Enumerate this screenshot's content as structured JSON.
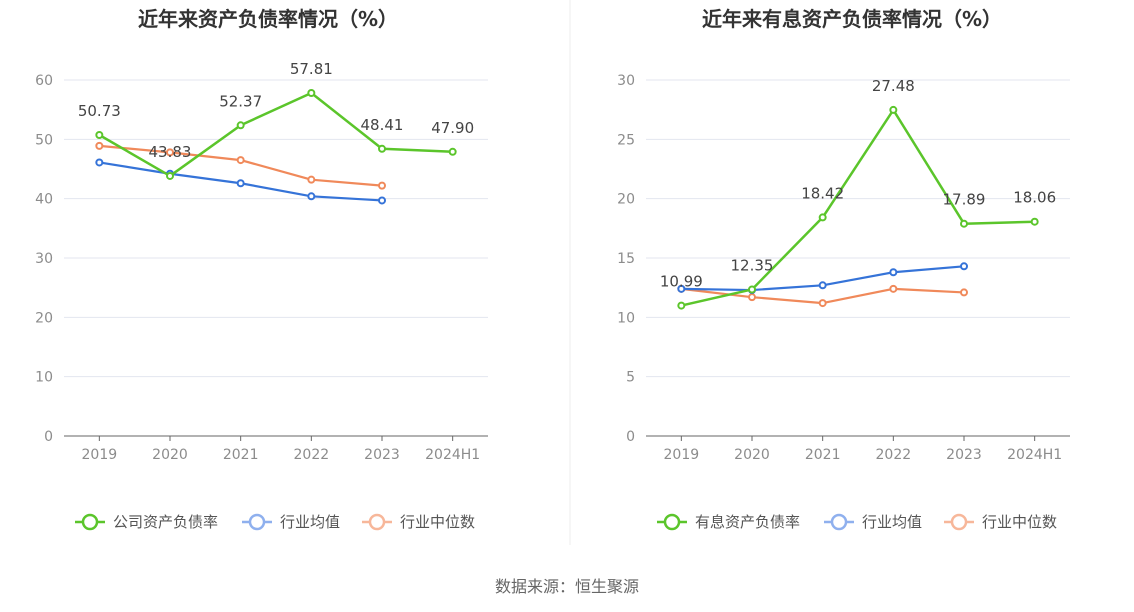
{
  "source": "数据来源：恒生聚源",
  "colors": {
    "company": "#5bc52b",
    "avg": "#3573d8",
    "median": "#f0895a",
    "legend_avg": "#8fb0ee",
    "legend_median": "#f7b79a",
    "grid": "#e3e6ef",
    "axis": "#666666"
  },
  "chart_data": [
    {
      "type": "line",
      "title": "近年来资产负债率情况（%）",
      "categories": [
        "2019",
        "2020",
        "2021",
        "2022",
        "2023",
        "2024H1"
      ],
      "ylim": [
        0,
        60
      ],
      "yticks": [
        0,
        10,
        20,
        30,
        40,
        50,
        60
      ],
      "grid": true,
      "legend_position": "bottom",
      "series": [
        {
          "name": "公司资产负债率",
          "key": "company",
          "values": [
            50.73,
            43.83,
            52.37,
            57.81,
            48.41,
            47.9
          ],
          "labels": [
            "50.73",
            "43.83",
            "52.37",
            "57.81",
            "48.41",
            "47.90"
          ]
        },
        {
          "name": "行业均值",
          "key": "avg",
          "values": [
            46.1,
            44.2,
            42.6,
            40.4,
            39.7,
            null
          ]
        },
        {
          "name": "行业中位数",
          "key": "median",
          "values": [
            48.9,
            47.8,
            46.5,
            43.2,
            42.2,
            null
          ]
        }
      ]
    },
    {
      "type": "line",
      "title": "近年来有息资产负债率情况（%）",
      "categories": [
        "2019",
        "2020",
        "2021",
        "2022",
        "2023",
        "2024H1"
      ],
      "ylim": [
        0,
        30
      ],
      "yticks": [
        0,
        5,
        10,
        15,
        20,
        25,
        30
      ],
      "grid": true,
      "legend_position": "bottom",
      "series": [
        {
          "name": "有息资产负债率",
          "key": "company",
          "values": [
            10.99,
            12.35,
            18.42,
            27.48,
            17.89,
            18.06
          ],
          "labels": [
            "10.99",
            "12.35",
            "18.42",
            "27.48",
            "17.89",
            "18.06"
          ]
        },
        {
          "name": "行业均值",
          "key": "avg",
          "values": [
            12.4,
            12.3,
            12.7,
            13.8,
            14.3,
            null
          ]
        },
        {
          "name": "行业中位数",
          "key": "median",
          "values": [
            12.4,
            11.7,
            11.2,
            12.4,
            12.1,
            null
          ]
        }
      ]
    }
  ]
}
